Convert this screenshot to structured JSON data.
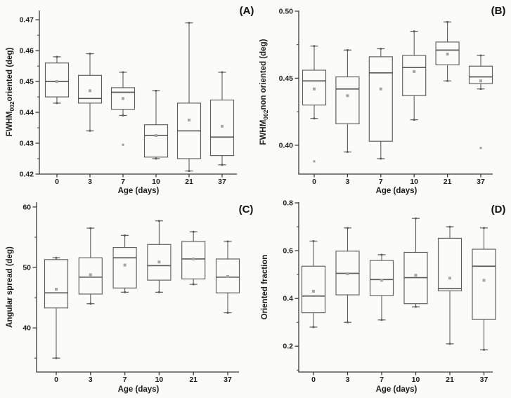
{
  "figure": {
    "bg": "#fbfbf9",
    "axis_color": "#3a3a3a",
    "box_color": "#5c5c5c",
    "text_color": "#1d1d1d",
    "mean_color": "#a6a6a6",
    "outlier_color": "#9a9a9a"
  },
  "chart_data": [
    {
      "type": "box",
      "panel_label": "(A)",
      "xlabel": "Age (days)",
      "ylabel_parts": [
        {
          "t": "FWHM"
        },
        {
          "t": "002",
          "sub": true
        },
        {
          "t": "oriented (deg)"
        }
      ],
      "categories": [
        "0",
        "3",
        "7",
        "10",
        "21",
        "37"
      ],
      "ylim": [
        0.42,
        0.473
      ],
      "yticks": [
        0.42,
        0.43,
        0.44,
        0.45,
        0.46,
        0.47
      ],
      "ytick_labels": [
        "0.42",
        "0.43",
        "0.44",
        "0.45",
        "0.46",
        "0.47"
      ],
      "yticks_minor": [
        0.425,
        0.435,
        0.445,
        0.455,
        0.465
      ],
      "legend": "none",
      "grid": false,
      "boxes": [
        {
          "low": 0.443,
          "q1": 0.445,
          "median": 0.45,
          "q3": 0.456,
          "high": 0.458,
          "mean": 0.45
        },
        {
          "low": 0.434,
          "q1": 0.443,
          "median": 0.4445,
          "q3": 0.452,
          "high": 0.459,
          "mean": 0.447
        },
        {
          "low": 0.439,
          "q1": 0.441,
          "median": 0.4465,
          "q3": 0.448,
          "high": 0.453,
          "mean": 0.4445,
          "outliers": [
            0.4295
          ]
        },
        {
          "low": 0.425,
          "q1": 0.4255,
          "median": 0.4325,
          "q3": 0.436,
          "high": 0.447,
          "mean": 0.4325
        },
        {
          "low": 0.421,
          "q1": 0.425,
          "median": 0.434,
          "q3": 0.443,
          "high": 0.469,
          "mean": 0.4375
        },
        {
          "low": 0.423,
          "q1": 0.426,
          "median": 0.432,
          "q3": 0.444,
          "high": 0.453,
          "mean": 0.4355
        }
      ]
    },
    {
      "type": "box",
      "panel_label": "(B)",
      "xlabel": "Age (days)",
      "ylabel_parts": [
        {
          "t": "FWHM"
        },
        {
          "t": "002",
          "sub": true
        },
        {
          "t": "non oriented (deg)"
        }
      ],
      "categories": [
        "0",
        "3",
        "7",
        "10",
        "21",
        "37"
      ],
      "ylim": [
        0.3785,
        0.5005
      ],
      "yticks": [
        0.4,
        0.45,
        0.5
      ],
      "ytick_labels": [
        "0.40",
        "0.45",
        "0.50"
      ],
      "yticks_minor": [
        0.425,
        0.475
      ],
      "legend": "none",
      "grid": false,
      "boxes": [
        {
          "low": 0.42,
          "q1": 0.43,
          "median": 0.448,
          "q3": 0.456,
          "high": 0.474,
          "mean": 0.442,
          "outliers": [
            0.388
          ]
        },
        {
          "low": 0.395,
          "q1": 0.416,
          "median": 0.442,
          "q3": 0.451,
          "high": 0.471,
          "mean": 0.437
        },
        {
          "low": 0.39,
          "q1": 0.403,
          "median": 0.454,
          "q3": 0.466,
          "high": 0.472,
          "mean": 0.442
        },
        {
          "low": 0.419,
          "q1": 0.437,
          "median": 0.458,
          "q3": 0.467,
          "high": 0.485,
          "mean": 0.455
        },
        {
          "low": 0.448,
          "q1": 0.46,
          "median": 0.471,
          "q3": 0.477,
          "high": 0.492,
          "mean": 0.468
        },
        {
          "low": 0.442,
          "q1": 0.446,
          "median": 0.451,
          "q3": 0.459,
          "high": 0.467,
          "mean": 0.448,
          "outliers": [
            0.398
          ]
        }
      ]
    },
    {
      "type": "box",
      "panel_label": "(C)",
      "xlabel": "Age (days)",
      "ylabel_parts": [
        {
          "t": "Angular spread (deg)"
        }
      ],
      "categories": [
        "0",
        "3",
        "7",
        "10",
        "21",
        "37"
      ],
      "ylim": [
        32.7,
        60.8
      ],
      "yticks": [
        40,
        50,
        60
      ],
      "ytick_labels": [
        "40",
        "50",
        "60"
      ],
      "yticks_minor": [
        35,
        45,
        55
      ],
      "legend": "none",
      "grid": false,
      "boxes": [
        {
          "low": 35.0,
          "q1": 43.3,
          "median": 45.8,
          "q3": 51.3,
          "high": 51.6,
          "mean": 46.4
        },
        {
          "low": 44.0,
          "q1": 45.6,
          "median": 48.4,
          "q3": 51.6,
          "high": 56.5,
          "mean": 48.8
        },
        {
          "low": 45.9,
          "q1": 46.6,
          "median": 51.6,
          "q3": 53.3,
          "high": 55.3,
          "mean": 50.4
        },
        {
          "low": 45.9,
          "q1": 47.9,
          "median": 50.3,
          "q3": 53.8,
          "high": 57.7,
          "mean": 50.9
        },
        {
          "low": 47.2,
          "q1": 48.1,
          "median": 51.4,
          "q3": 54.3,
          "high": 55.9,
          "mean": 51.4
        },
        {
          "low": 42.5,
          "q1": 45.8,
          "median": 48.4,
          "q3": 51.4,
          "high": 54.3,
          "mean": 48.5
        }
      ]
    },
    {
      "type": "box",
      "panel_label": "(D)",
      "xlabel": "Age (days)",
      "ylabel_parts": [
        {
          "t": "Oriented fraction"
        }
      ],
      "categories": [
        "0",
        "3",
        "7",
        "10",
        "21",
        "37"
      ],
      "ylim": [
        0.092,
        0.803
      ],
      "yticks": [
        0.2,
        0.4,
        0.6,
        0.8
      ],
      "ytick_labels": [
        "0.2",
        "0.4",
        "0.6",
        "0.8"
      ],
      "yticks_minor": [
        0.1,
        0.3,
        0.5,
        0.7
      ],
      "legend": "none",
      "grid": false,
      "boxes": [
        {
          "low": 0.28,
          "q1": 0.34,
          "median": 0.41,
          "q3": 0.535,
          "high": 0.64,
          "mean": 0.43
        },
        {
          "low": 0.3,
          "q1": 0.415,
          "median": 0.505,
          "q3": 0.598,
          "high": 0.695,
          "mean": 0.503
        },
        {
          "low": 0.31,
          "q1": 0.412,
          "median": 0.479,
          "q3": 0.559,
          "high": 0.583,
          "mean": 0.476
        },
        {
          "low": 0.365,
          "q1": 0.378,
          "median": 0.487,
          "q3": 0.593,
          "high": 0.735,
          "mean": 0.497
        },
        {
          "low": 0.21,
          "q1": 0.432,
          "median": 0.441,
          "q3": 0.652,
          "high": 0.7,
          "mean": 0.485
        },
        {
          "low": 0.185,
          "q1": 0.312,
          "median": 0.535,
          "q3": 0.606,
          "high": 0.695,
          "mean": 0.476
        }
      ]
    }
  ]
}
